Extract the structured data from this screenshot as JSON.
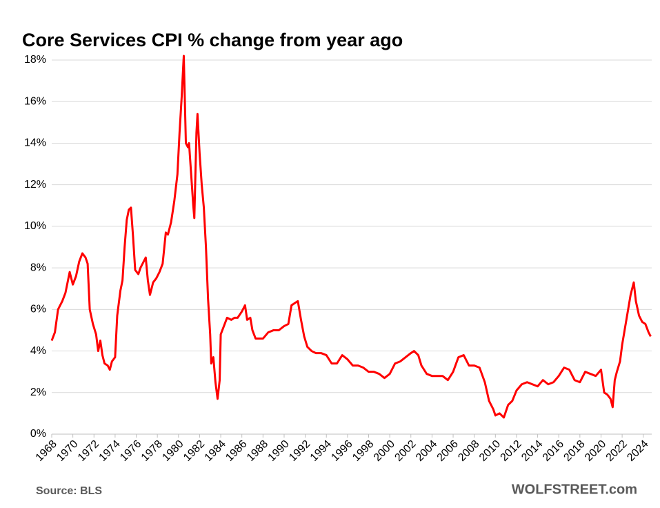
{
  "chart_data": {
    "type": "line",
    "title": "Core Services CPI % change from year ago",
    "source": "Source: BLS",
    "watermark": "WOLFSTREET.com",
    "color": "#ff0000",
    "grid": true,
    "xlim": [
      1968,
      2024.8
    ],
    "xticks": [
      1968,
      1970,
      1972,
      1974,
      1976,
      1978,
      1980,
      1982,
      1984,
      1986,
      1988,
      1990,
      1992,
      1994,
      1996,
      1998,
      2000,
      2002,
      2004,
      2006,
      2008,
      2010,
      2012,
      2014,
      2016,
      2018,
      2020,
      2022,
      2024
    ],
    "ylim": [
      0,
      18
    ],
    "yticks": [
      {
        "value": 0,
        "label": "0%"
      },
      {
        "value": 2,
        "label": "2%"
      },
      {
        "value": 4,
        "label": "4%"
      },
      {
        "value": 6,
        "label": "6%"
      },
      {
        "value": 8,
        "label": "8%"
      },
      {
        "value": 10,
        "label": "10%"
      },
      {
        "value": 12,
        "label": "12%"
      },
      {
        "value": 14,
        "label": "14%"
      },
      {
        "value": 16,
        "label": "16%"
      },
      {
        "value": 18,
        "label": "18%"
      }
    ],
    "x": [
      1968.0,
      1968.3,
      1968.6,
      1969.0,
      1969.3,
      1969.7,
      1970.0,
      1970.3,
      1970.6,
      1970.9,
      1971.2,
      1971.4,
      1971.6,
      1971.9,
      1972.2,
      1972.4,
      1972.6,
      1972.8,
      1973.0,
      1973.3,
      1973.5,
      1973.7,
      1974.0,
      1974.2,
      1974.5,
      1974.7,
      1974.9,
      1975.1,
      1975.3,
      1975.5,
      1975.7,
      1975.9,
      1976.2,
      1976.4,
      1976.7,
      1976.9,
      1977.1,
      1977.3,
      1977.6,
      1977.9,
      1978.2,
      1978.5,
      1978.8,
      1979.0,
      1979.3,
      1979.6,
      1979.9,
      1980.1,
      1980.3,
      1980.5,
      1980.7,
      1980.9,
      1981.0,
      1981.2,
      1981.4,
      1981.5,
      1981.7,
      1981.8,
      1982.0,
      1982.2,
      1982.4,
      1982.6,
      1982.8,
      1983.0,
      1983.1,
      1983.3,
      1983.5,
      1983.7,
      1983.9,
      1984.0,
      1984.3,
      1984.6,
      1985.0,
      1985.3,
      1985.6,
      1986.0,
      1986.3,
      1986.5,
      1986.8,
      1987.0,
      1987.3,
      1987.6,
      1988.0,
      1988.5,
      1989.0,
      1989.5,
      1990.0,
      1990.4,
      1990.7,
      1991.0,
      1991.3,
      1991.6,
      1991.9,
      1992.2,
      1992.6,
      1993.0,
      1993.5,
      1994.0,
      1994.5,
      1995.0,
      1995.5,
      1996.0,
      1996.5,
      1997.0,
      1997.5,
      1998.0,
      1998.5,
      1999.0,
      1999.5,
      2000.0,
      2000.5,
      2001.0,
      2001.5,
      2002.0,
      2002.3,
      2002.7,
      2003.0,
      2003.5,
      2004.0,
      2004.5,
      2005.0,
      2005.5,
      2006.0,
      2006.5,
      2007.0,
      2007.5,
      2008.0,
      2008.5,
      2009.0,
      2009.4,
      2009.8,
      2010.0,
      2010.4,
      2010.8,
      2011.2,
      2011.6,
      2012.0,
      2012.5,
      2013.0,
      2013.5,
      2014.0,
      2014.5,
      2015.0,
      2015.5,
      2016.0,
      2016.5,
      2017.0,
      2017.5,
      2018.0,
      2018.5,
      2019.0,
      2019.5,
      2020.0,
      2020.3,
      2020.6,
      2020.9,
      2021.1,
      2021.3,
      2021.5,
      2021.8,
      2022.0,
      2022.3,
      2022.6,
      2022.8,
      2023.1,
      2023.3,
      2023.6,
      2023.9,
      2024.2,
      2024.5,
      2024.7
    ],
    "series": [
      {
        "name": "Core Services CPI",
        "color": "#ff0000",
        "values": [
          4.5,
          4.9,
          6.0,
          6.4,
          6.8,
          7.8,
          7.2,
          7.6,
          8.3,
          8.7,
          8.5,
          8.2,
          6.0,
          5.3,
          4.8,
          4.0,
          4.5,
          3.8,
          3.4,
          3.3,
          3.1,
          3.5,
          3.7,
          5.7,
          6.9,
          7.4,
          9.0,
          10.3,
          10.8,
          10.9,
          9.5,
          7.9,
          7.7,
          8.0,
          8.3,
          8.5,
          7.4,
          6.7,
          7.3,
          7.5,
          7.8,
          8.2,
          9.7,
          9.6,
          10.2,
          11.2,
          12.5,
          14.5,
          16.2,
          18.2,
          14.0,
          13.8,
          14.0,
          12.5,
          11.0,
          10.4,
          14.5,
          15.4,
          13.5,
          12.0,
          10.9,
          9.0,
          6.5,
          4.8,
          3.4,
          3.7,
          2.5,
          1.7,
          2.6,
          4.8,
          5.2,
          5.6,
          5.5,
          5.6,
          5.6,
          5.9,
          6.2,
          5.5,
          5.6,
          5.0,
          4.6,
          4.6,
          4.6,
          4.9,
          5.0,
          5.0,
          5.2,
          5.3,
          6.2,
          6.3,
          6.4,
          5.5,
          4.7,
          4.2,
          4.0,
          3.9,
          3.9,
          3.8,
          3.4,
          3.4,
          3.8,
          3.6,
          3.3,
          3.3,
          3.2,
          3.0,
          3.0,
          2.9,
          2.7,
          2.9,
          3.4,
          3.5,
          3.7,
          3.9,
          4.0,
          3.8,
          3.3,
          2.9,
          2.8,
          2.8,
          2.8,
          2.6,
          3.0,
          3.7,
          3.8,
          3.3,
          3.3,
          3.2,
          2.5,
          1.6,
          1.2,
          0.9,
          1.0,
          0.8,
          1.4,
          1.6,
          2.1,
          2.4,
          2.5,
          2.4,
          2.3,
          2.6,
          2.4,
          2.5,
          2.8,
          3.2,
          3.1,
          2.6,
          2.5,
          3.0,
          2.9,
          2.8,
          3.1,
          2.0,
          1.9,
          1.7,
          1.3,
          2.6,
          3.0,
          3.5,
          4.3,
          5.2,
          6.1,
          6.7,
          7.3,
          6.4,
          5.7,
          5.4,
          5.3,
          4.9,
          4.7
        ]
      }
    ]
  }
}
